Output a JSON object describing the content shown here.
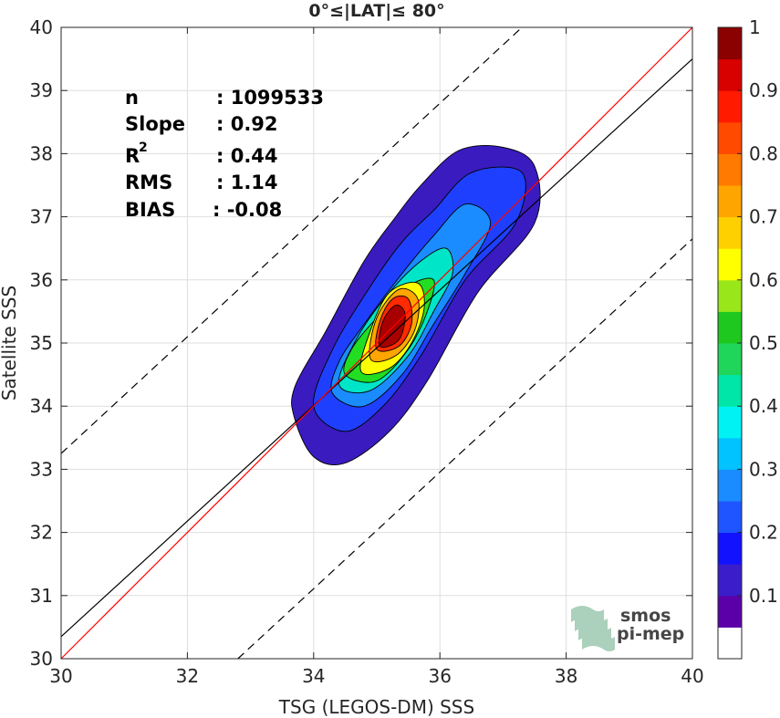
{
  "chart_data": {
    "type": "heatmap",
    "subtype": "density-contour-scatter",
    "title": "0°≤|LAT|≤ 80°",
    "xlabel": "TSG (LEGOS-DM) SSS",
    "ylabel": "Satellite SSS",
    "xlim": [
      30,
      40
    ],
    "ylim": [
      30,
      40
    ],
    "xticks": [
      "30",
      "32",
      "34",
      "36",
      "38",
      "40"
    ],
    "yticks": [
      "30",
      "31",
      "32",
      "33",
      "34",
      "35",
      "36",
      "37",
      "38",
      "39",
      "40"
    ],
    "grid": true,
    "stats": {
      "n_label": "n",
      "n_value": ": 1099533",
      "slope_label": "Slope",
      "slope_value": ": 0.92",
      "r2_label": "R",
      "r2_sup": "2",
      "r2_value": ": 0.44",
      "rms_label": "RMS",
      "rms_value": ": 1.14",
      "bias_label": "BIAS",
      "bias_value": ": -0.08"
    },
    "lines": {
      "one_to_one": {
        "x": [
          30,
          40
        ],
        "y": [
          30,
          40
        ],
        "color": "#ff0000"
      },
      "regression": {
        "x": [
          30,
          40
        ],
        "y": [
          30.35,
          39.5
        ],
        "color": "#000000"
      },
      "upper_bound": {
        "x": [
          30,
          37.3
        ],
        "y": [
          33.25,
          40
        ],
        "color": "#000000",
        "style": "dashed"
      },
      "lower_bound": {
        "x": [
          32.8,
          40
        ],
        "y": [
          30,
          36.65
        ],
        "color": "#000000",
        "style": "dashed"
      }
    },
    "contours": [
      {
        "level": 0.05,
        "color": "#3a1bbf",
        "points": [
          [
            33.7,
            33.8
          ],
          [
            34.0,
            33.2
          ],
          [
            34.5,
            33.1
          ],
          [
            35.2,
            33.6
          ],
          [
            35.8,
            34.4
          ],
          [
            36.6,
            35.8
          ],
          [
            37.5,
            36.9
          ],
          [
            37.5,
            37.8
          ],
          [
            37.0,
            38.1
          ],
          [
            36.3,
            38.05
          ],
          [
            35.7,
            37.5
          ],
          [
            35.3,
            37.0
          ],
          [
            34.8,
            36.3
          ],
          [
            34.2,
            35.2
          ],
          [
            33.7,
            34.3
          ]
        ]
      },
      {
        "level": 0.15,
        "color": "#1f3fff",
        "points": [
          [
            34.0,
            34.0
          ],
          [
            34.5,
            33.6
          ],
          [
            35.1,
            34.0
          ],
          [
            35.7,
            34.8
          ],
          [
            36.4,
            36.0
          ],
          [
            37.2,
            36.9
          ],
          [
            37.3,
            37.7
          ],
          [
            36.5,
            37.7
          ],
          [
            35.9,
            37.1
          ],
          [
            35.4,
            36.6
          ],
          [
            34.9,
            35.9
          ],
          [
            34.3,
            34.9
          ]
        ]
      },
      {
        "level": 0.3,
        "color": "#1a8cff",
        "points": [
          [
            34.3,
            34.2
          ],
          [
            34.8,
            34.0
          ],
          [
            35.4,
            34.5
          ],
          [
            35.9,
            35.3
          ],
          [
            36.4,
            36.1
          ],
          [
            36.8,
            36.9
          ],
          [
            36.4,
            37.2
          ],
          [
            35.9,
            36.7
          ],
          [
            35.4,
            36.1
          ],
          [
            34.8,
            35.3
          ],
          [
            34.4,
            34.7
          ]
        ]
      },
      {
        "level": 0.4,
        "color": "#00e5c7",
        "points": [
          [
            34.4,
            34.35
          ],
          [
            34.9,
            34.25
          ],
          [
            35.5,
            34.8
          ],
          [
            35.9,
            35.5
          ],
          [
            36.2,
            36.1
          ],
          [
            36.1,
            36.5
          ],
          [
            35.7,
            36.3
          ],
          [
            35.2,
            35.8
          ],
          [
            34.7,
            35.1
          ]
        ]
      },
      {
        "level": 0.5,
        "color": "#22dd22",
        "points": [
          [
            34.5,
            34.5
          ],
          [
            35.0,
            34.4
          ],
          [
            35.5,
            34.9
          ],
          [
            35.8,
            35.5
          ],
          [
            35.9,
            36.0
          ],
          [
            35.5,
            35.9
          ],
          [
            35.0,
            35.4
          ],
          [
            34.6,
            34.9
          ]
        ]
      },
      {
        "level": 0.6,
        "color": "#ffff00",
        "points": [
          [
            34.75,
            34.55
          ],
          [
            35.2,
            34.6
          ],
          [
            35.55,
            35.0
          ],
          [
            35.75,
            35.55
          ],
          [
            35.65,
            35.95
          ],
          [
            35.2,
            35.8
          ],
          [
            34.9,
            35.2
          ]
        ]
      },
      {
        "level": 0.7,
        "color": "#ffa500",
        "points": [
          [
            34.9,
            34.75
          ],
          [
            35.3,
            34.8
          ],
          [
            35.6,
            35.2
          ],
          [
            35.65,
            35.7
          ],
          [
            35.35,
            35.85
          ],
          [
            35.0,
            35.4
          ]
        ]
      },
      {
        "level": 0.85,
        "color": "#ff2a00",
        "points": [
          [
            35.0,
            34.9
          ],
          [
            35.35,
            34.95
          ],
          [
            35.55,
            35.3
          ],
          [
            35.5,
            35.7
          ],
          [
            35.25,
            35.7
          ],
          [
            35.05,
            35.35
          ]
        ]
      },
      {
        "level": 0.95,
        "color": "#a80000",
        "points": [
          [
            35.05,
            34.95
          ],
          [
            35.35,
            35.05
          ],
          [
            35.45,
            35.45
          ],
          [
            35.3,
            35.6
          ],
          [
            35.1,
            35.35
          ]
        ]
      }
    ],
    "colorbar": {
      "ticks": [
        "0.1",
        "0.2",
        "0.3",
        "0.4",
        "0.5",
        "0.6",
        "0.7",
        "0.8",
        "0.9",
        "1"
      ],
      "colors": [
        "#ffffff",
        "#5b00a8",
        "#3b1ec9",
        "#1212ff",
        "#1f55ff",
        "#1a8cff",
        "#00c3ff",
        "#00f2f2",
        "#00e5a8",
        "#20d65a",
        "#1fc81f",
        "#99e61a",
        "#ffff00",
        "#ffd000",
        "#ffa500",
        "#ff7a00",
        "#ff4a00",
        "#ff1a00",
        "#d90000",
        "#8b0000"
      ]
    },
    "watermark": {
      "line1": "smos",
      "line2": "pi-mep"
    }
  }
}
